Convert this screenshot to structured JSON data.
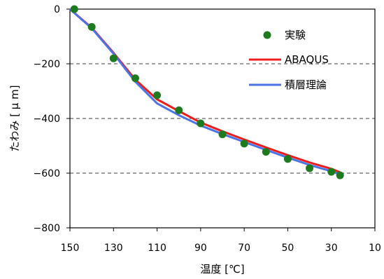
{
  "chart_data": {
    "type": "line",
    "xlabel": "温度 [℃]",
    "ylabel": "たわみ [ μ m]",
    "xlim": [
      150,
      10
    ],
    "ylim": [
      -800,
      0
    ],
    "x_ticks": [
      "150",
      "130",
      "110",
      "90",
      "70",
      "50",
      "30",
      "10"
    ],
    "y_ticks": [
      "0",
      "-200",
      "-400",
      "-600",
      "-800"
    ],
    "grid": "horizontal-dashed",
    "legend_position": "top-right",
    "series": [
      {
        "name": "実験",
        "kind": "scatter",
        "color": "#1e7a1e",
        "points": [
          [
            148,
            0
          ],
          [
            140,
            -65
          ],
          [
            130,
            -180
          ],
          [
            120,
            -253
          ],
          [
            110,
            -315
          ],
          [
            100,
            -370
          ],
          [
            90,
            -418
          ],
          [
            80,
            -458
          ],
          [
            70,
            -492
          ],
          [
            60,
            -522
          ],
          [
            50,
            -548
          ],
          [
            40,
            -582
          ],
          [
            30,
            -595
          ],
          [
            26,
            -608
          ]
        ]
      },
      {
        "name": "ABAQUS",
        "kind": "line",
        "color": "#ee1c1c",
        "points": [
          [
            150,
            0
          ],
          [
            140,
            -68
          ],
          [
            130,
            -160
          ],
          [
            120,
            -258
          ],
          [
            110,
            -330
          ],
          [
            100,
            -373
          ],
          [
            90,
            -415
          ],
          [
            80,
            -447
          ],
          [
            70,
            -477
          ],
          [
            60,
            -506
          ],
          [
            50,
            -534
          ],
          [
            40,
            -561
          ],
          [
            30,
            -584
          ],
          [
            26,
            -597
          ]
        ]
      },
      {
        "name": "積層理論",
        "kind": "line",
        "color": "#4b73e3",
        "points": [
          [
            150,
            0
          ],
          [
            140,
            -70
          ],
          [
            130,
            -163
          ],
          [
            120,
            -265
          ],
          [
            110,
            -345
          ],
          [
            100,
            -388
          ],
          [
            90,
            -426
          ],
          [
            80,
            -457
          ],
          [
            70,
            -486
          ],
          [
            60,
            -515
          ],
          [
            50,
            -543
          ],
          [
            40,
            -570
          ],
          [
            30,
            -593
          ],
          [
            26,
            -604
          ]
        ]
      }
    ]
  }
}
